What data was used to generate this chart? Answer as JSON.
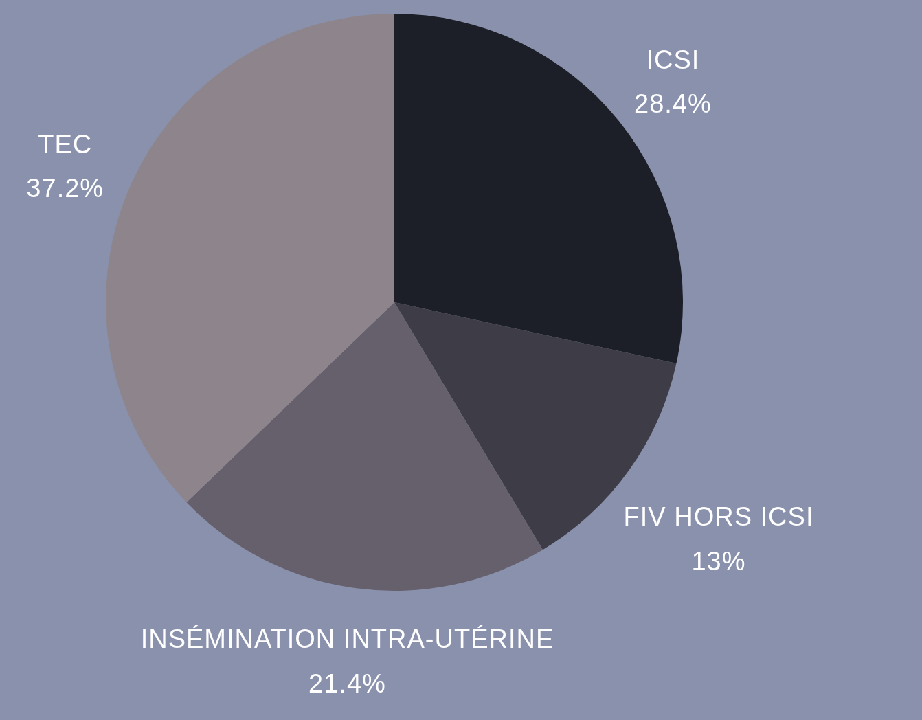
{
  "chart_data": {
    "type": "pie",
    "categories": [
      "ICSI",
      "FIV HORS ICSI",
      "INSÉMINATION INTRA-UTÉRINE",
      "TEC"
    ],
    "values": [
      28.4,
      13,
      21.4,
      37.2
    ],
    "value_labels": [
      "28.4%",
      "13%",
      "21.4%",
      "37.2%"
    ],
    "colors": [
      "#1c1f27",
      "#3e3c47",
      "#65606b",
      "#8e858c"
    ]
  }
}
